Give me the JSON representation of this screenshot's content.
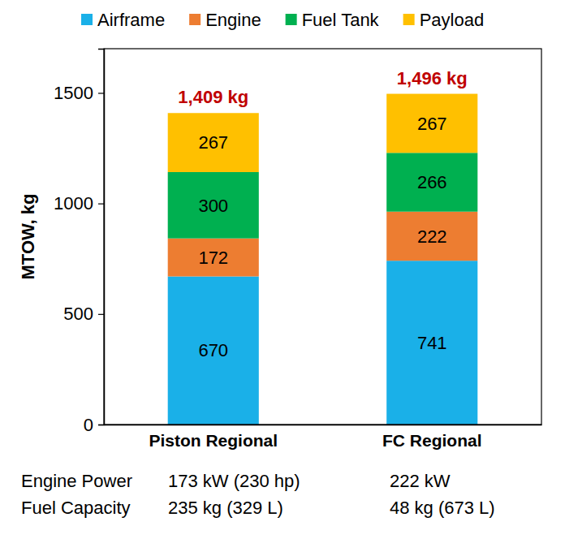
{
  "chart_data": {
    "type": "bar",
    "y_label": "MTOW, kg",
    "categories": [
      "Piston Regional",
      "FC Regional"
    ],
    "series": [
      {
        "name": "Airframe",
        "color": "#1ab0e8",
        "values": [
          670,
          741
        ]
      },
      {
        "name": "Engine",
        "color": "#ed7d31",
        "values": [
          172,
          222
        ]
      },
      {
        "name": "Fuel Tank",
        "color": "#00b050",
        "values": [
          300,
          266
        ]
      },
      {
        "name": "Payload",
        "color": "#ffc000",
        "values": [
          267,
          267
        ]
      }
    ],
    "totals": [
      1409,
      1496
    ],
    "total_labels": [
      "1,409 kg",
      "1,496 kg"
    ],
    "annotations": [
      {
        "text": "Engine Power",
        "values": [
          "173 kW (230 hp)",
          "222 kW"
        ]
      },
      {
        "text": "Fuel Capacity",
        "values": [
          "235 kg (329 L)",
          "48 kg (673 L)"
        ]
      }
    ],
    "ylim": [
      0,
      1700
    ],
    "yticks": [
      0,
      500,
      1000,
      1500
    ],
    "stacked": true,
    "data_labels": true,
    "grid": false,
    "legend": "top"
  }
}
